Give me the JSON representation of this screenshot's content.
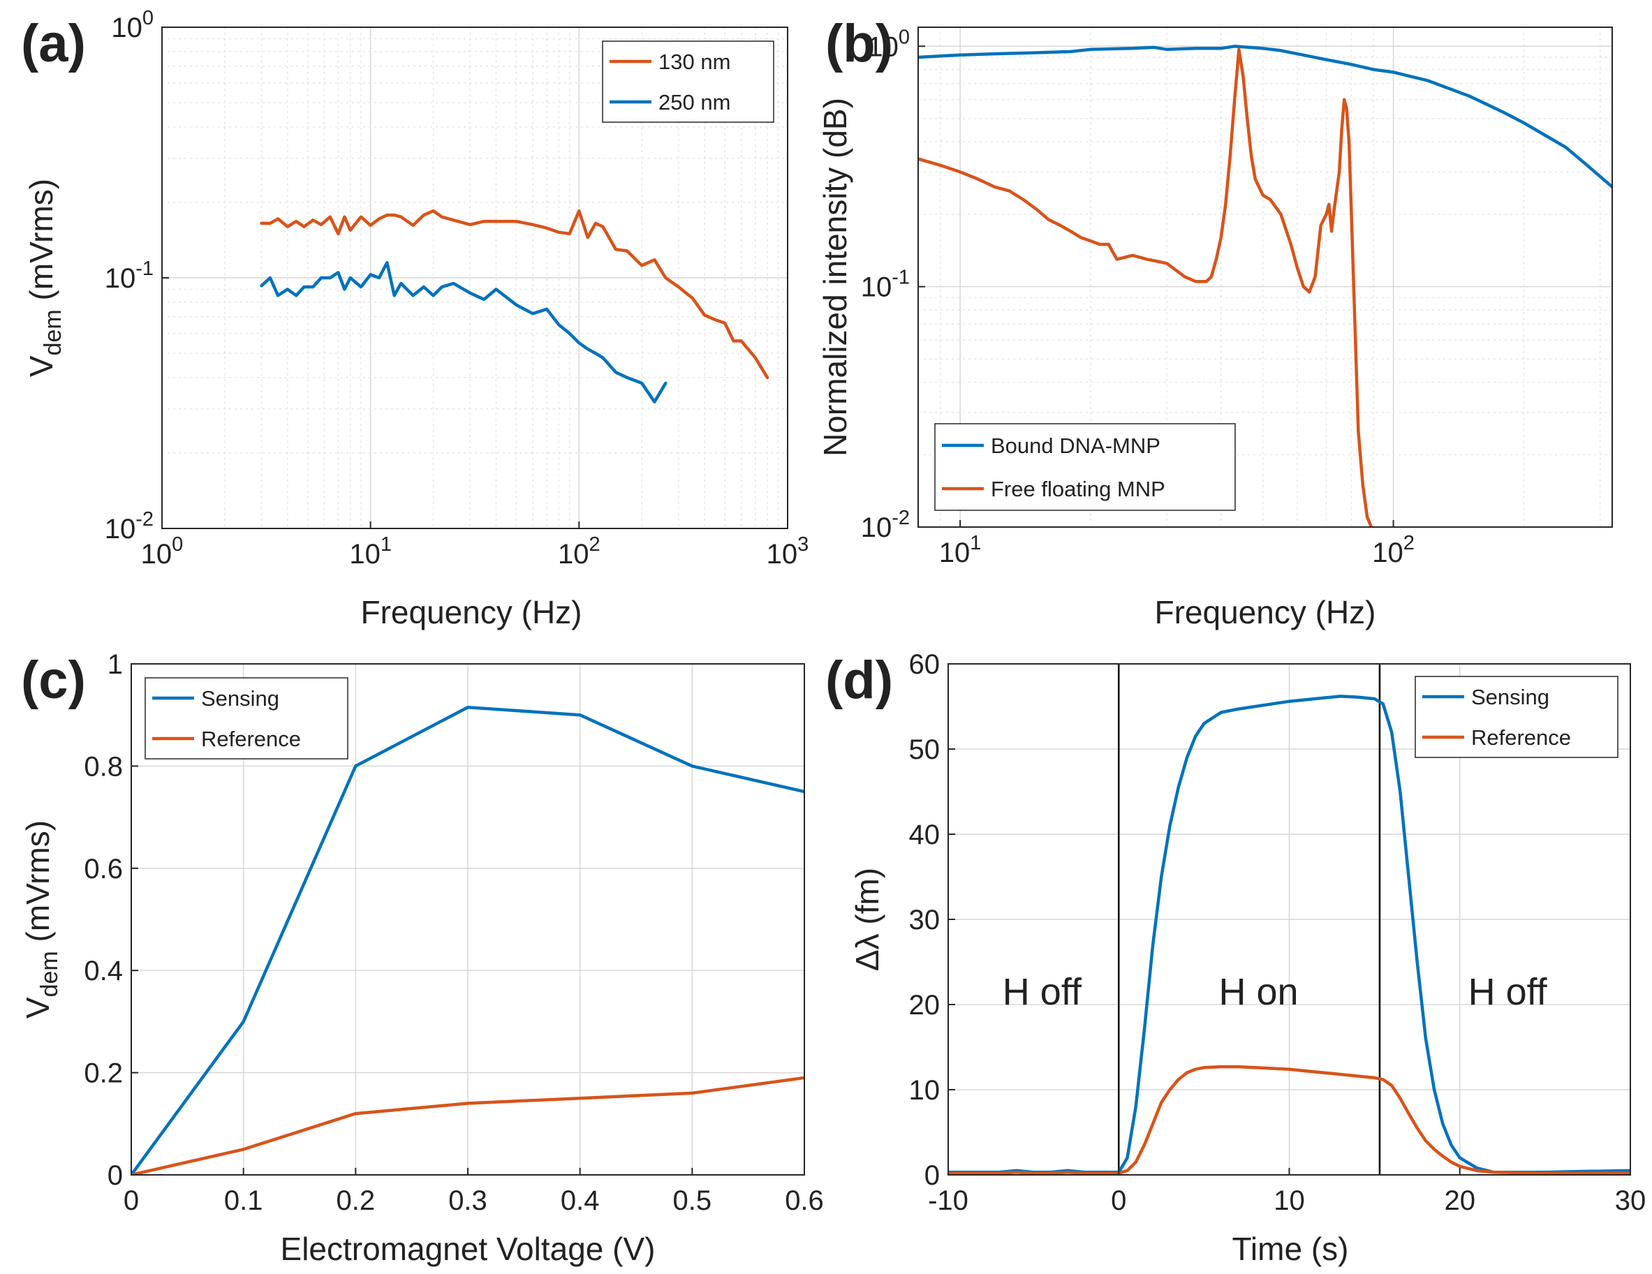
{
  "colors": {
    "orange": "#D95319",
    "blue": "#0072BD",
    "grid": "#d7d7d7",
    "grid_minor": "#e6e6e6",
    "axis": "#262626"
  },
  "chart_data": [
    {
      "id": "a",
      "panel_label": "(a)",
      "type": "line",
      "xscale": "log",
      "yscale": "log",
      "xlim": [
        1,
        1000
      ],
      "ylim": [
        0.01,
        1
      ],
      "xticks": [
        {
          "value": 1,
          "base": "10",
          "exp": "0"
        },
        {
          "value": 10,
          "base": "10",
          "exp": "1"
        },
        {
          "value": 100,
          "base": "10",
          "exp": "2"
        },
        {
          "value": 1000,
          "base": "10",
          "exp": "3"
        }
      ],
      "yticks": [
        {
          "value": 0.01,
          "base": "10",
          "exp": "-2"
        },
        {
          "value": 0.1,
          "base": "10",
          "exp": "-1"
        },
        {
          "value": 1,
          "base": "10",
          "exp": "0"
        }
      ],
      "xlabel": "Frequency (Hz)",
      "ylabel": {
        "main": "V",
        "sub": "dem",
        "rest": " (mVrms)"
      },
      "legend": "top-right",
      "series": [
        {
          "name": "130 nm",
          "color": "#D95319",
          "x": [
            3,
            3.3,
            3.6,
            4,
            4.4,
            4.8,
            5.3,
            5.8,
            6.4,
            7,
            7.5,
            8,
            9,
            10,
            11,
            12,
            13,
            14,
            16,
            18,
            20,
            22,
            25,
            30,
            35,
            40,
            50,
            60,
            70,
            80,
            90,
            100,
            110,
            120,
            130,
            150,
            170,
            200,
            230,
            260,
            300,
            350,
            400,
            450,
            500,
            550,
            600,
            700,
            800
          ],
          "y": [
            0.165,
            0.165,
            0.172,
            0.16,
            0.168,
            0.16,
            0.17,
            0.163,
            0.175,
            0.15,
            0.175,
            0.155,
            0.175,
            0.162,
            0.172,
            0.178,
            0.178,
            0.175,
            0.162,
            0.178,
            0.185,
            0.175,
            0.17,
            0.163,
            0.168,
            0.168,
            0.168,
            0.163,
            0.158,
            0.152,
            0.15,
            0.185,
            0.145,
            0.165,
            0.16,
            0.13,
            0.128,
            0.112,
            0.118,
            0.1,
            0.092,
            0.083,
            0.071,
            0.068,
            0.066,
            0.056,
            0.056,
            0.048,
            0.04
          ]
        },
        {
          "name": "250 nm",
          "color": "#0072BD",
          "x": [
            3,
            3.3,
            3.6,
            4,
            4.4,
            4.8,
            5.3,
            5.8,
            6.4,
            7,
            7.5,
            8,
            9,
            10,
            11,
            12,
            13,
            14,
            16,
            18,
            20,
            22,
            25,
            30,
            35,
            40,
            50,
            60,
            70,
            80,
            90,
            100,
            110,
            120,
            130,
            150,
            170,
            200,
            230,
            260
          ],
          "y": [
            0.093,
            0.1,
            0.085,
            0.09,
            0.085,
            0.092,
            0.092,
            0.1,
            0.1,
            0.105,
            0.09,
            0.1,
            0.092,
            0.103,
            0.1,
            0.115,
            0.085,
            0.095,
            0.085,
            0.092,
            0.085,
            0.092,
            0.095,
            0.087,
            0.082,
            0.09,
            0.078,
            0.072,
            0.075,
            0.065,
            0.06,
            0.055,
            0.052,
            0.05,
            0.048,
            0.042,
            0.04,
            0.038,
            0.032,
            0.038
          ]
        }
      ]
    },
    {
      "id": "b",
      "panel_label": "(b)",
      "type": "line",
      "xscale": "log",
      "yscale": "log",
      "xlim": [
        8,
        320
      ],
      "ylim": [
        0.01,
        1.2
      ],
      "xticks": [
        {
          "value": 10,
          "base": "10",
          "exp": "1"
        },
        {
          "value": 100,
          "base": "10",
          "exp": "2"
        }
      ],
      "yticks": [
        {
          "value": 0.01,
          "base": "10",
          "exp": "-2"
        },
        {
          "value": 0.1,
          "base": "10",
          "exp": "-1"
        },
        {
          "value": 1,
          "base": "10",
          "exp": "0"
        }
      ],
      "xlabel": "Frequency (Hz)",
      "ylabel": {
        "main": "Normalized intensity (dB)",
        "sub": "",
        "rest": ""
      },
      "legend": "bottom-left",
      "series": [
        {
          "name": "Bound DNA-MNP",
          "color": "#0072BD",
          "x": [
            8,
            10,
            12,
            15,
            18,
            20,
            25,
            28,
            30,
            35,
            40,
            43,
            50,
            55,
            60,
            70,
            80,
            90,
            100,
            120,
            150,
            180,
            200,
            250,
            280,
            320
          ],
          "y": [
            0.9,
            0.92,
            0.93,
            0.94,
            0.95,
            0.97,
            0.98,
            0.99,
            0.97,
            0.98,
            0.98,
            1.0,
            0.98,
            0.96,
            0.93,
            0.88,
            0.84,
            0.8,
            0.78,
            0.72,
            0.62,
            0.53,
            0.48,
            0.38,
            0.32,
            0.26
          ]
        },
        {
          "name": "Free floating MNP",
          "color": "#D95319",
          "x": [
            8,
            9,
            10,
            11,
            12,
            13,
            14,
            15,
            16,
            17,
            18,
            19,
            20,
            21,
            22,
            23,
            25,
            27,
            30,
            33,
            35,
            37,
            38,
            39,
            40,
            41,
            42,
            43,
            44,
            45,
            46,
            47,
            48,
            50,
            52,
            55,
            58,
            60,
            62,
            64,
            66,
            68,
            70,
            71,
            72,
            73,
            75,
            76,
            77,
            78,
            79,
            80,
            81,
            82,
            83,
            85,
            87,
            90,
            93,
            95,
            97
          ],
          "y": [
            0.34,
            0.32,
            0.3,
            0.28,
            0.26,
            0.25,
            0.23,
            0.21,
            0.19,
            0.18,
            0.17,
            0.16,
            0.155,
            0.15,
            0.15,
            0.13,
            0.135,
            0.13,
            0.125,
            0.11,
            0.105,
            0.105,
            0.11,
            0.13,
            0.16,
            0.22,
            0.35,
            0.6,
            0.97,
            0.75,
            0.5,
            0.35,
            0.28,
            0.24,
            0.23,
            0.2,
            0.15,
            0.12,
            0.1,
            0.095,
            0.11,
            0.18,
            0.2,
            0.22,
            0.17,
            0.21,
            0.3,
            0.45,
            0.6,
            0.55,
            0.4,
            0.2,
            0.1,
            0.05,
            0.025,
            0.015,
            0.011,
            0.0095,
            0.009,
            0.009,
            0.009
          ]
        }
      ]
    },
    {
      "id": "c",
      "panel_label": "(c)",
      "type": "line",
      "xscale": "linear",
      "yscale": "linear",
      "xlim": [
        0,
        0.6
      ],
      "ylim": [
        0,
        1
      ],
      "xticks": [
        {
          "value": 0,
          "label": "0"
        },
        {
          "value": 0.1,
          "label": "0.1"
        },
        {
          "value": 0.2,
          "label": "0.2"
        },
        {
          "value": 0.3,
          "label": "0.3"
        },
        {
          "value": 0.4,
          "label": "0.4"
        },
        {
          "value": 0.5,
          "label": "0.5"
        },
        {
          "value": 0.6,
          "label": "0.6"
        }
      ],
      "yticks": [
        {
          "value": 0,
          "label": "0"
        },
        {
          "value": 0.2,
          "label": "0.2"
        },
        {
          "value": 0.4,
          "label": "0.4"
        },
        {
          "value": 0.6,
          "label": "0.6"
        },
        {
          "value": 0.8,
          "label": "0.8"
        },
        {
          "value": 1,
          "label": "1"
        }
      ],
      "xlabel": "Electromagnet Voltage (V)",
      "ylabel": {
        "main": "V",
        "sub": "dem",
        "rest": " (mVrms)"
      },
      "legend": "top-left",
      "series": [
        {
          "name": "Sensing",
          "color": "#0072BD",
          "x": [
            0,
            0.1,
            0.2,
            0.3,
            0.4,
            0.5,
            0.6
          ],
          "y": [
            0,
            0.3,
            0.8,
            0.915,
            0.9,
            0.8,
            0.75
          ]
        },
        {
          "name": "Reference",
          "color": "#D95319",
          "x": [
            0,
            0.1,
            0.2,
            0.3,
            0.4,
            0.5,
            0.6
          ],
          "y": [
            0,
            0.05,
            0.12,
            0.14,
            0.15,
            0.16,
            0.19
          ]
        }
      ]
    },
    {
      "id": "d",
      "panel_label": "(d)",
      "type": "line",
      "xscale": "linear",
      "yscale": "linear",
      "xlim": [
        -10,
        30
      ],
      "ylim": [
        0,
        60
      ],
      "xticks": [
        {
          "value": -10,
          "label": "-10"
        },
        {
          "value": 0,
          "label": "0"
        },
        {
          "value": 10,
          "label": "10"
        },
        {
          "value": 20,
          "label": "20"
        },
        {
          "value": 30,
          "label": "30"
        }
      ],
      "yticks": [
        {
          "value": 0,
          "label": "0"
        },
        {
          "value": 10,
          "label": "10"
        },
        {
          "value": 20,
          "label": "20"
        },
        {
          "value": 30,
          "label": "30"
        },
        {
          "value": 40,
          "label": "40"
        },
        {
          "value": 50,
          "label": "50"
        },
        {
          "value": 60,
          "label": "60"
        }
      ],
      "xlabel": "Time (s)",
      "ylabel": {
        "main": "Δλ (fm)",
        "sub": "",
        "rest": ""
      },
      "legend": "top-right",
      "vlines": [
        0,
        15.3
      ],
      "regions": [
        {
          "text": "H off",
          "x": -4.5,
          "y": 20
        },
        {
          "text": "H on",
          "x": 8.2,
          "y": 20
        },
        {
          "text": "H off",
          "x": 22.8,
          "y": 20
        }
      ],
      "series": [
        {
          "name": "Sensing",
          "color": "#0072BD",
          "x": [
            -10,
            -7,
            -6,
            -5,
            -4,
            -3,
            -2,
            -1,
            0,
            0.5,
            1,
            1.5,
            2,
            2.5,
            3,
            3.5,
            4,
            4.5,
            5,
            6,
            7,
            8,
            9,
            10,
            11,
            12,
            13,
            14,
            15,
            15.5,
            16,
            16.5,
            17,
            17.5,
            18,
            18.5,
            19,
            19.5,
            20,
            21,
            22,
            23,
            25,
            27,
            30
          ],
          "y": [
            0.3,
            0.3,
            0.5,
            0.3,
            0.3,
            0.5,
            0.3,
            0.3,
            0.3,
            2,
            8,
            17,
            27,
            35,
            41,
            45.5,
            49,
            51.5,
            53,
            54.3,
            54.7,
            55,
            55.3,
            55.6,
            55.8,
            56,
            56.2,
            56.1,
            55.9,
            55.3,
            52,
            45,
            35,
            25,
            16,
            10,
            6,
            3.5,
            2,
            0.8,
            0.3,
            0.3,
            0.3,
            0.4,
            0.5
          ]
        },
        {
          "name": "Reference",
          "color": "#D95319",
          "x": [
            -10,
            -7,
            -6,
            -5,
            -4,
            -3,
            -2,
            -1,
            0,
            0.5,
            1,
            1.5,
            2,
            2.5,
            3,
            3.5,
            4,
            4.5,
            5,
            6,
            7,
            8,
            9,
            10,
            11,
            12,
            13,
            14,
            15,
            15.5,
            16,
            16.5,
            17,
            17.5,
            18,
            18.5,
            19,
            19.5,
            20,
            21,
            22,
            25,
            30
          ],
          "y": [
            0.2,
            0.2,
            0.3,
            0.2,
            0.2,
            0.3,
            0.2,
            0.2,
            0.2,
            0.5,
            1.5,
            3.5,
            6,
            8.5,
            10,
            11.2,
            12,
            12.4,
            12.6,
            12.7,
            12.7,
            12.6,
            12.5,
            12.4,
            12.2,
            12,
            11.8,
            11.6,
            11.4,
            11.2,
            10.5,
            9,
            7.2,
            5.5,
            4,
            3,
            2.2,
            1.5,
            1,
            0.5,
            0.3,
            0.2,
            0.2
          ]
        }
      ]
    }
  ]
}
